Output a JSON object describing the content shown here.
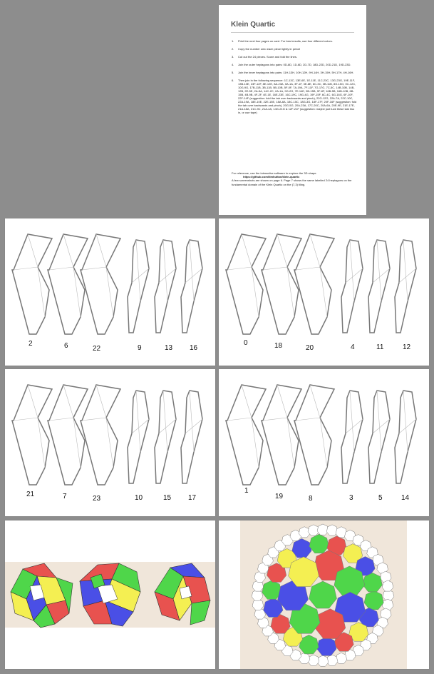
{
  "instructions": {
    "title": "Klein Quartic",
    "steps": [
      {
        "num": "1.",
        "text": "Print the next four pages on card. For best results, use four different colors."
      },
      {
        "num": "2.",
        "text": "Copy the number onto each piece lightly in pencil"
      },
      {
        "num": "3.",
        "text": "Cut out the 24 pieces. Score and fold the lines."
      },
      {
        "num": "4.",
        "text": "Join the outer heptagons into pairs: 0D-8D, 1D-6D, 2D-7D, 18D-22D, 20D-21D, 19D-23D."
      },
      {
        "num": "5.",
        "text": "Join the inner heptagons into pairs: 11H-13H, 10H-12H, 9H-14H, 3H-15H, 5H-17H, 4H-16H."
      },
      {
        "num": "6.",
        "text": "Then join in the following sequence: 1C-13C, 13E-6E, 1E-11E, 11C-23C, 13G-23G, 19E-11F, 13B-13E, 23F-12F, 8E-12E, 8A-23A, 0A-1A, 3F-1F, 3E-8E, 8C-3C, 3B-11B, 8G-15G, 0C-12C, 10G-9G, 17B-11B, 3B-11B, 5B-10B, 5F-0F, 7A-19A, 7F-11F, 7G-17G, 7C-5C, 14B-10B, 14B-12B, 2E-5E, 2A-5A, 14C-2C, 2A-1A, 9G-2G, 7E-14E, 9B-15B, 9F-8F, 16B-5B, 16B-10B, 6B-15B, 4B-9B, 4F-2F, 4E-1E, 16E-23E, 16C-19C, 19G-4G, 19F-15F, 6C-4C, 6G-16G, 6F-10F, 22F-14F (suggestion: fold the tab over backwards and pinch), 22G-12G, 22A-7A, 22C-10C, 22A-19A, 18E-10E, 22E-15E, 18A-6A, 18C-15C, 18G-3G, 18F-17F, 20F-16F (suggestion: fold the tab over backwards and pinch), 20G-5G, 20A-23A, 17C-20C, 20A-6A, 20E-9E, 21E-17E, 21A-18A, 21C-9C, 21A-4A, 14G-21G & 12F-21F (suggestion: maybe just tuck these last two in, or use tape)"
      }
    ],
    "note_lines": [
      "For reference, use the interactive software to explore the 3D shape.",
      "https://github.com/timhutton/klein-quartic",
      "A few screenshots are shown on page 6. Page 7 shows the same labelled 24 heptagons on the fundamental domain of the Klein Quartic on the (7,3) tiling."
    ]
  },
  "net_pages": [
    {
      "labels": [
        "2",
        "6",
        "22",
        "9",
        "13",
        "16"
      ]
    },
    {
      "labels": [
        "0",
        "18",
        "20",
        "4",
        "11",
        "12"
      ]
    },
    {
      "labels": [
        "21",
        "7",
        "23",
        "10",
        "15",
        "17"
      ]
    },
    {
      "labels": [
        "1",
        "19",
        "8",
        "3",
        "5",
        "14"
      ]
    }
  ],
  "colors": {
    "background": "#8d8d8d",
    "page": "#ffffff",
    "photo_bg": "#f0e6da",
    "red": "#e8524f",
    "green": "#4fd64a",
    "blue": "#4a4fe6",
    "yellow": "#f4ef52",
    "tile_white": "#ffffff"
  }
}
